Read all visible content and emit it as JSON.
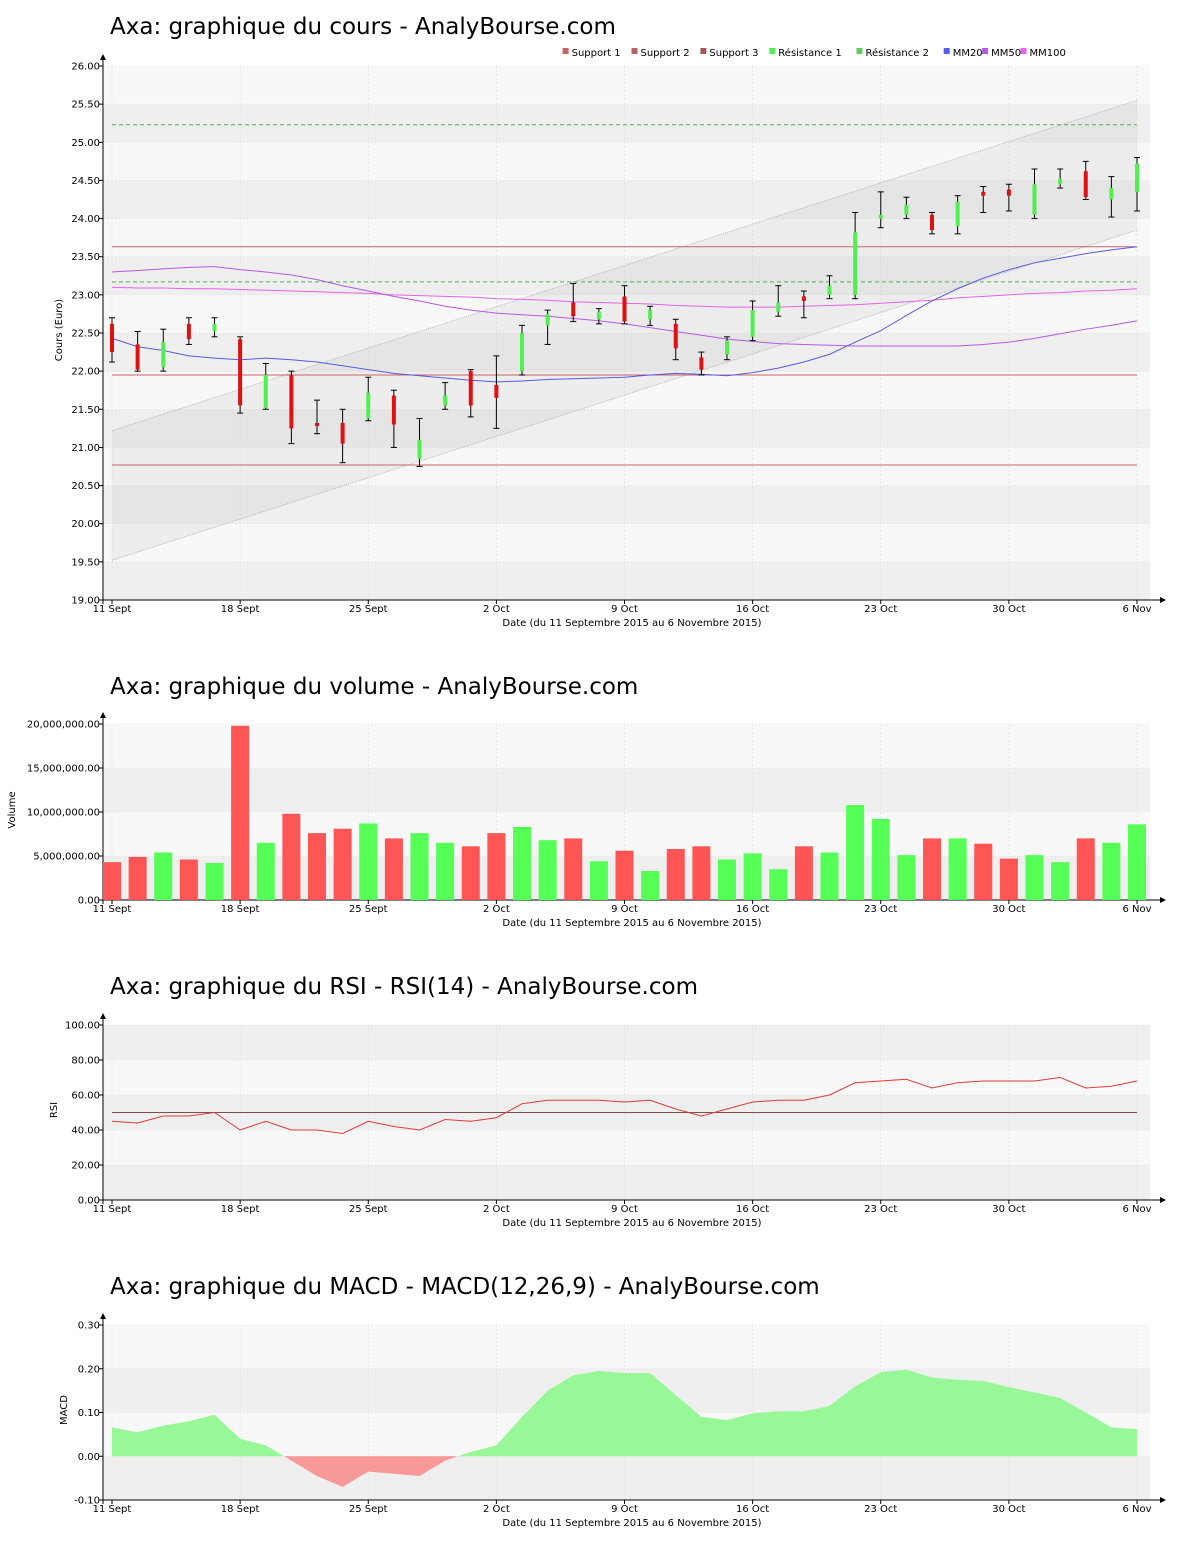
{
  "colors": {
    "up": "#50f050",
    "down": "#e01010",
    "vol_up": "#55ff55",
    "vol_down": "#ff5555",
    "support": "#c86464",
    "resistance": "#50b450",
    "mm20": "#5a5ae6",
    "mm50": "#b45ae6",
    "mm100": "#e664e6",
    "rsi": "#e03c3c",
    "macd_pos": "#98f898",
    "macd_neg": "#f89898",
    "band_dark": "#efefef",
    "band_light": "#f8f8f8",
    "grid": "#dddddd"
  },
  "x_ticks": [
    {
      "label": "11 Sept",
      "index": 0
    },
    {
      "label": "18 Sept",
      "index": 5
    },
    {
      "label": "25 Sept",
      "index": 10
    },
    {
      "label": "2 Oct",
      "index": 15
    },
    {
      "label": "9 Oct",
      "index": 20
    },
    {
      "label": "16 Oct",
      "index": 25
    },
    {
      "label": "23 Oct",
      "index": 30
    },
    {
      "label": "30 Oct",
      "index": 35
    },
    {
      "label": "6 Nov",
      "index": 40
    }
  ],
  "x_title": "Date (du 11 Septembre 2015 au 6 Novembre 2015)",
  "chart_data": [
    {
      "type": "candlestick",
      "title": "Axa: graphique du cours - AnalyBourse.com",
      "ylabel": "Cours (Euro)",
      "ylim": [
        19,
        26
      ],
      "yticks": [
        "19.00",
        "19.50",
        "20.00",
        "20.50",
        "21.00",
        "21.50",
        "22.00",
        "22.50",
        "23.00",
        "23.50",
        "24.00",
        "24.50",
        "25.00",
        "25.50",
        "26.00"
      ],
      "legend": [
        "Support 1",
        "Support 2",
        "Support 3",
        "Résistance 1",
        "Résistance 2",
        "MM20",
        "MM50",
        "MM100"
      ],
      "legend_position": "top-right",
      "candles": [
        {
          "o": 22.62,
          "c": 22.25,
          "h": 22.7,
          "l": 22.12
        },
        {
          "o": 22.35,
          "c": 22.02,
          "h": 22.52,
          "l": 22.0
        },
        {
          "o": 22.05,
          "c": 22.38,
          "h": 22.55,
          "l": 22.0
        },
        {
          "o": 22.62,
          "c": 22.42,
          "h": 22.7,
          "l": 22.35
        },
        {
          "o": 22.52,
          "c": 22.62,
          "h": 22.7,
          "l": 22.45
        },
        {
          "o": 22.42,
          "c": 21.55,
          "h": 22.45,
          "l": 21.45
        },
        {
          "o": 21.52,
          "c": 21.95,
          "h": 22.1,
          "l": 21.5
        },
        {
          "o": 21.95,
          "c": 21.25,
          "h": 22.0,
          "l": 21.05
        },
        {
          "o": 21.32,
          "c": 21.28,
          "h": 21.62,
          "l": 21.18
        },
        {
          "o": 21.32,
          "c": 21.05,
          "h": 21.5,
          "l": 20.8
        },
        {
          "o": 21.38,
          "c": 21.72,
          "h": 21.92,
          "l": 21.35
        },
        {
          "o": 21.68,
          "c": 21.3,
          "h": 21.75,
          "l": 21.0
        },
        {
          "o": 20.85,
          "c": 21.1,
          "h": 21.38,
          "l": 20.75
        },
        {
          "o": 21.55,
          "c": 21.68,
          "h": 21.85,
          "l": 21.5
        },
        {
          "o": 22.0,
          "c": 21.55,
          "h": 22.02,
          "l": 21.4
        },
        {
          "o": 21.82,
          "c": 21.65,
          "h": 22.2,
          "l": 21.25
        },
        {
          "o": 22.0,
          "c": 22.5,
          "h": 22.6,
          "l": 21.95
        },
        {
          "o": 22.6,
          "c": 22.75,
          "h": 22.8,
          "l": 22.35
        },
        {
          "o": 22.9,
          "c": 22.72,
          "h": 23.15,
          "l": 22.65
        },
        {
          "o": 22.68,
          "c": 22.78,
          "h": 22.82,
          "l": 22.62
        },
        {
          "o": 22.98,
          "c": 22.65,
          "h": 23.12,
          "l": 22.62
        },
        {
          "o": 22.68,
          "c": 22.8,
          "h": 22.85,
          "l": 22.6
        },
        {
          "o": 22.62,
          "c": 22.3,
          "h": 22.68,
          "l": 22.15
        },
        {
          "o": 22.18,
          "c": 22.02,
          "h": 22.25,
          "l": 21.95
        },
        {
          "o": 22.22,
          "c": 22.4,
          "h": 22.45,
          "l": 22.15
        },
        {
          "o": 22.45,
          "c": 22.8,
          "h": 22.92,
          "l": 22.4
        },
        {
          "o": 22.78,
          "c": 22.9,
          "h": 23.12,
          "l": 22.72
        },
        {
          "o": 22.98,
          "c": 22.92,
          "h": 23.05,
          "l": 22.7
        },
        {
          "o": 23.0,
          "c": 23.12,
          "h": 23.25,
          "l": 22.95
        },
        {
          "o": 23.0,
          "c": 23.82,
          "h": 24.08,
          "l": 22.95
        },
        {
          "o": 24.0,
          "c": 24.05,
          "h": 24.35,
          "l": 23.88
        },
        {
          "o": 24.05,
          "c": 24.18,
          "h": 24.28,
          "l": 24.0
        },
        {
          "o": 24.05,
          "c": 23.85,
          "h": 24.08,
          "l": 23.8
        },
        {
          "o": 23.9,
          "c": 24.22,
          "h": 24.3,
          "l": 23.8
        },
        {
          "o": 24.35,
          "c": 24.3,
          "h": 24.42,
          "l": 24.08
        },
        {
          "o": 24.38,
          "c": 24.3,
          "h": 24.45,
          "l": 24.1
        },
        {
          "o": 24.05,
          "c": 24.45,
          "h": 24.65,
          "l": 24.0
        },
        {
          "o": 24.45,
          "c": 24.52,
          "h": 24.65,
          "l": 24.4
        },
        {
          "o": 24.62,
          "c": 24.28,
          "h": 24.75,
          "l": 24.25
        },
        {
          "o": 24.25,
          "c": 24.4,
          "h": 24.55,
          "l": 24.02
        },
        {
          "o": 24.35,
          "c": 24.72,
          "h": 24.8,
          "l": 24.1
        }
      ],
      "support_lines": [
        23.63,
        21.95,
        20.77
      ],
      "resistance_lines": [
        25.23,
        23.17
      ],
      "trend_channel": {
        "upper": [
          21.22,
          25.55
        ],
        "lower": [
          19.52,
          23.85
        ]
      },
      "mm20": [
        22.43,
        22.32,
        22.27,
        22.2,
        22.17,
        22.15,
        22.17,
        22.15,
        22.12,
        22.07,
        22.02,
        21.97,
        21.94,
        21.91,
        21.88,
        21.86,
        21.87,
        21.89,
        21.9,
        21.91,
        21.92,
        21.95,
        21.97,
        21.96,
        21.94,
        21.98,
        22.04,
        22.12,
        22.22,
        22.38,
        22.53,
        22.73,
        22.92,
        23.08,
        23.22,
        23.33,
        23.42,
        23.48,
        23.54,
        23.59,
        23.63
      ],
      "mm50": [
        23.3,
        23.32,
        23.34,
        23.36,
        23.37,
        23.33,
        23.3,
        23.26,
        23.2,
        23.12,
        23.05,
        22.98,
        22.92,
        22.85,
        22.8,
        22.76,
        22.74,
        22.72,
        22.69,
        22.66,
        22.62,
        22.57,
        22.52,
        22.47,
        22.42,
        22.39,
        22.36,
        22.35,
        22.34,
        22.33,
        22.33,
        22.33,
        22.33,
        22.33,
        22.35,
        22.38,
        22.43,
        22.49,
        22.55,
        22.6,
        22.66
      ],
      "mm100": [
        23.1,
        23.09,
        23.09,
        23.08,
        23.08,
        23.07,
        23.06,
        23.05,
        23.04,
        23.03,
        23.02,
        23.0,
        22.99,
        22.98,
        22.97,
        22.95,
        22.94,
        22.93,
        22.91,
        22.9,
        22.89,
        22.88,
        22.86,
        22.85,
        22.84,
        22.84,
        22.84,
        22.85,
        22.86,
        22.87,
        22.89,
        22.91,
        22.93,
        22.96,
        22.98,
        23.0,
        23.02,
        23.03,
        23.05,
        23.06,
        23.08
      ]
    },
    {
      "type": "bar",
      "title": "Axa: graphique du volume - AnalyBourse.com",
      "ylabel": "Volume",
      "ylim": [
        0,
        20000000
      ],
      "yticks": [
        "0.00",
        "5,000,000.00",
        "10,000,000.00",
        "15,000,000.00",
        "20,000,000.00"
      ],
      "values": [
        4300000,
        4900000,
        5400000,
        4600000,
        4200000,
        19800000,
        6500000,
        9800000,
        7600000,
        8100000,
        8700000,
        7000000,
        7600000,
        6500000,
        6100000,
        7600000,
        8300000,
        6800000,
        7000000,
        4400000,
        5600000,
        3300000,
        5800000,
        6100000,
        4600000,
        5300000,
        3500000,
        6100000,
        5400000,
        10800000,
        9200000,
        5100000,
        7000000,
        7000000,
        6400000,
        4700000,
        5100000,
        4300000,
        7000000,
        6500000,
        8600000
      ]
    },
    {
      "type": "line",
      "title": "Axa: graphique du RSI - RSI(14) - AnalyBourse.com",
      "ylabel": "RSI",
      "ylim": [
        0,
        100
      ],
      "yticks": [
        "0.00",
        "20.00",
        "40.00",
        "60.00",
        "80.00",
        "100.00"
      ],
      "reference": 50,
      "values": [
        45,
        44,
        48,
        48,
        50,
        40,
        45,
        40,
        40,
        38,
        45,
        42,
        40,
        46,
        45,
        47,
        55,
        57,
        57,
        57,
        56,
        57,
        52,
        48,
        52,
        56,
        57,
        57,
        60,
        67,
        68,
        69,
        64,
        67,
        68,
        68,
        68,
        70,
        64,
        65,
        68
      ]
    },
    {
      "type": "area",
      "title": "Axa: graphique du MACD - MACD(12,26,9) - AnalyBourse.com",
      "ylabel": "MACD",
      "ylim": [
        -0.1,
        0.3
      ],
      "yticks": [
        "-0.10",
        "0.00",
        "0.10",
        "0.20",
        "0.30"
      ],
      "values": [
        0.066,
        0.055,
        0.07,
        0.08,
        0.095,
        0.04,
        0.025,
        -0.01,
        -0.045,
        -0.07,
        -0.035,
        -0.04,
        -0.045,
        -0.01,
        0.01,
        0.025,
        0.09,
        0.15,
        0.185,
        0.195,
        0.19,
        0.19,
        0.14,
        0.09,
        0.083,
        0.098,
        0.103,
        0.103,
        0.115,
        0.16,
        0.192,
        0.198,
        0.18,
        0.175,
        0.172,
        0.158,
        0.146,
        0.133,
        0.1,
        0.066,
        0.062
      ]
    }
  ]
}
